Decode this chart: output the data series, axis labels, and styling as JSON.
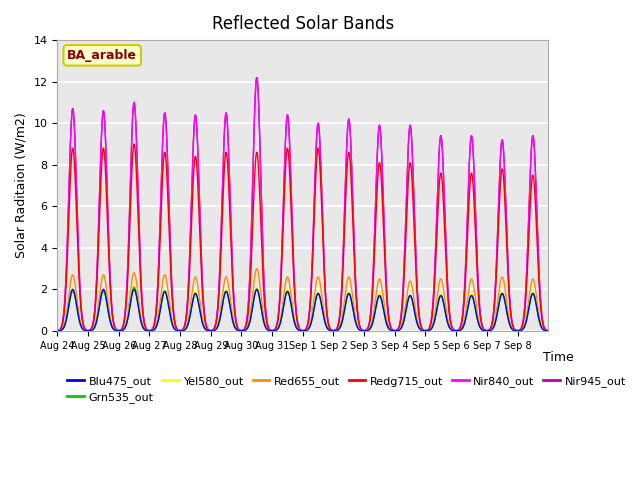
{
  "title": "Reflected Solar Bands",
  "xlabel": "Time",
  "ylabel": "Solar Raditaion (W/m2)",
  "ylim": [
    0,
    14
  ],
  "annotation_text": "BA_arable",
  "annotation_color": "#8B0000",
  "annotation_bg": "#FFFFCC",
  "annotation_border": "#CCCC00",
  "xtick_labels": [
    "Aug 24",
    "Aug 25",
    "Aug 26",
    "Aug 27",
    "Aug 28",
    "Aug 29",
    "Aug 30",
    "Aug 31",
    "Sep 1",
    "Sep 2",
    "Sep 3",
    "Sep 4",
    "Sep 5",
    "Sep 6",
    "Sep 7",
    "Sep 8"
  ],
  "bg_color": "#E8E8E8",
  "grid_color": "#FFFFFF",
  "nir945_peaks": [
    10.7,
    10.6,
    11.0,
    10.5,
    10.4,
    10.5,
    12.2,
    10.4,
    10.0,
    10.2,
    9.9,
    9.9,
    9.4,
    9.4,
    9.2,
    9.4
  ],
  "redg_peaks": [
    8.8,
    8.8,
    9.0,
    8.6,
    8.4,
    8.6,
    8.6,
    8.8,
    8.8,
    8.6,
    8.1,
    8.1,
    7.6,
    7.6,
    7.8,
    7.5
  ],
  "red_peaks": [
    2.7,
    2.7,
    2.8,
    2.7,
    2.6,
    2.6,
    3.0,
    2.6,
    2.6,
    2.6,
    2.5,
    2.4,
    2.5,
    2.5,
    2.6,
    2.5
  ],
  "yel_peaks": [
    2.0,
    2.0,
    2.2,
    2.0,
    1.9,
    2.0,
    2.1,
    2.0,
    1.9,
    1.9,
    1.8,
    1.7,
    1.8,
    1.8,
    1.9,
    1.9
  ],
  "grn_peaks": [
    1.9,
    1.9,
    2.1,
    1.9,
    1.8,
    1.9,
    2.0,
    1.9,
    1.8,
    1.8,
    1.7,
    1.7,
    1.7,
    1.7,
    1.8,
    1.8
  ],
  "blu_peaks": [
    2.0,
    2.0,
    2.0,
    1.9,
    1.8,
    1.9,
    2.0,
    1.9,
    1.8,
    1.8,
    1.7,
    1.7,
    1.7,
    1.7,
    1.8,
    1.8
  ],
  "nir840_peaks": [
    10.7,
    10.6,
    11.0,
    10.5,
    10.4,
    10.5,
    12.2,
    10.4,
    10.0,
    10.2,
    9.9,
    9.9,
    9.4,
    9.4,
    9.2,
    9.4
  ],
  "colors": {
    "Blu475_out": "#0000FF",
    "Grn535_out": "#00CC00",
    "Yel580_out": "#FFFF00",
    "Red655_out": "#FF8C00",
    "Redg715_out": "#FF0000",
    "Nir840_out": "#FF00FF",
    "Nir945_out": "#BB00BB"
  },
  "legend_order": [
    "Blu475_out",
    "Grn535_out",
    "Yel580_out",
    "Red655_out",
    "Redg715_out",
    "Nir840_out",
    "Nir945_out"
  ]
}
